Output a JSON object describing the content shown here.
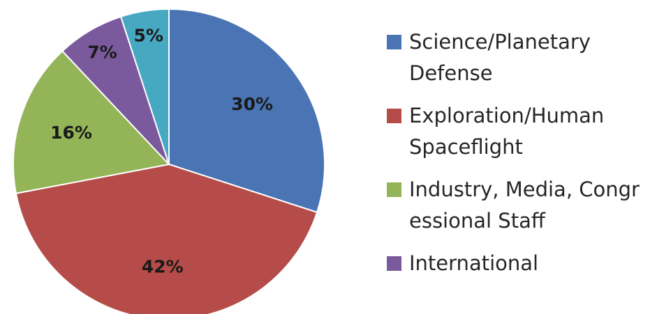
{
  "chart_data": {
    "type": "pie",
    "title": "",
    "legend_position": "right",
    "slices": [
      {
        "legend_lines": [
          "Science/Planetary",
          "Defense"
        ],
        "value": 30,
        "label": "30%",
        "color": "#4a74b3"
      },
      {
        "legend_lines": [
          "Exploration/Human",
          "Spaceflight"
        ],
        "value": 42,
        "label": "42%",
        "color": "#b64c49"
      },
      {
        "legend_lines": [
          "Industry, Media, Congr",
          "essional Staff"
        ],
        "value": 16,
        "label": "16%",
        "color": "#93b457"
      },
      {
        "legend_lines": [
          "International"
        ],
        "value": 7,
        "label": "7%",
        "color": "#7a5a9c"
      },
      {
        "legend_lines": [],
        "value": 5,
        "label": "5%",
        "color": "#47a8c1"
      }
    ]
  }
}
